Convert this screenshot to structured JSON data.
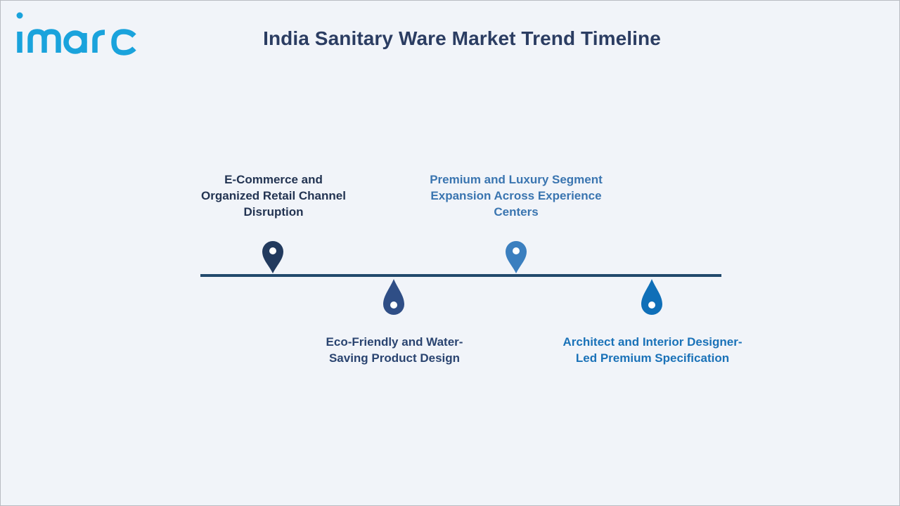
{
  "logo": {
    "text": "imarc",
    "color": "#1aa3dc"
  },
  "title": "India Sanitary Ware Market Trend Timeline",
  "colors": {
    "background": "#f1f4f9",
    "title": "#2b3d62",
    "line": "#22496c"
  },
  "milestones": [
    {
      "label_lines": [
        "E-Commerce and",
        "Organized Retail Channel",
        "Disruption"
      ],
      "position": "above",
      "marker": "map-pin",
      "color": "#223a5e",
      "label_color": "#233452"
    },
    {
      "label_lines": [
        "Eco-Friendly and Water-",
        "Saving Product Design"
      ],
      "position": "below",
      "marker": "drop",
      "color": "#2f4e86",
      "label_color": "#2a4470"
    },
    {
      "label_lines": [
        "Premium and Luxury Segment",
        "Expansion Across Experience",
        "Centers"
      ],
      "position": "above",
      "marker": "map-pin",
      "color": "#3b7fbf",
      "label_color": "#3a75b0"
    },
    {
      "label_lines": [
        "Architect and Interior Designer-",
        "Led Premium Specification"
      ],
      "position": "below",
      "marker": "drop",
      "color": "#0f6fb8",
      "label_color": "#1a72b8"
    }
  ]
}
